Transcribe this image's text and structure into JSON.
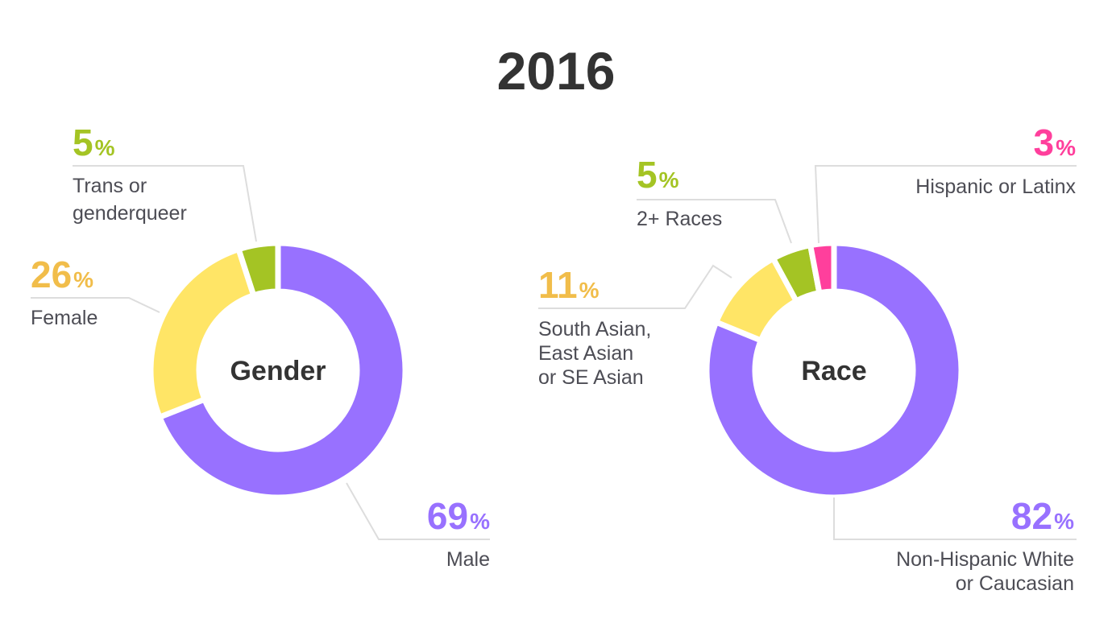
{
  "title": "2016",
  "colors": {
    "purple": "#9871ff",
    "yellow": "#ffe566",
    "green": "#a4c424",
    "pink": "#ff3f9c",
    "pct_yellow": "#f1bd4a",
    "pct_purple": "#9871ff",
    "pct_green": "#a4c424",
    "pct_pink": "#ff3f9c",
    "label": "#4d4d55",
    "leader": "#dddddd",
    "center": "#333333"
  },
  "chart_data": [
    {
      "type": "pie",
      "donut": true,
      "center_label": "Gender",
      "slices": [
        {
          "label": "Male",
          "value": 69,
          "display": "69",
          "color": "purple"
        },
        {
          "label": "Female",
          "value": 26,
          "display": "26",
          "color": "yellow"
        },
        {
          "label": "Trans or genderqueer",
          "value": 5,
          "display": "5",
          "color": "green"
        }
      ]
    },
    {
      "type": "pie",
      "donut": true,
      "center_label": "Race",
      "slices": [
        {
          "label": "Non-Hispanic White or Caucasian",
          "value": 82,
          "display": "82",
          "color": "purple"
        },
        {
          "label": "South Asian, East Asian or SE Asian",
          "value": 11,
          "display": "11",
          "color": "yellow"
        },
        {
          "label": "2+ Races",
          "value": 5,
          "display": "5",
          "color": "green"
        },
        {
          "label": "Hispanic or Latinx",
          "value": 3,
          "display": "3",
          "color": "pink"
        }
      ]
    }
  ],
  "annotations": [
    {
      "chart": 0,
      "slice": 2,
      "pct": "5",
      "pct_sign": "%",
      "lines": [
        "Trans or",
        "genderqueer"
      ],
      "color": "pct_green"
    },
    {
      "chart": 0,
      "slice": 1,
      "pct": "26",
      "pct_sign": "%",
      "lines": [
        "Female"
      ],
      "color": "pct_yellow"
    },
    {
      "chart": 0,
      "slice": 0,
      "pct": "69",
      "pct_sign": "%",
      "lines": [
        "Male"
      ],
      "color": "pct_purple"
    },
    {
      "chart": 1,
      "slice": 3,
      "pct": "3",
      "pct_sign": "%",
      "lines": [
        "Hispanic or Latinx"
      ],
      "color": "pct_pink"
    },
    {
      "chart": 1,
      "slice": 2,
      "pct": "5",
      "pct_sign": "%",
      "lines": [
        "2+ Races"
      ],
      "color": "pct_green"
    },
    {
      "chart": 1,
      "slice": 1,
      "pct": "11",
      "pct_sign": "%",
      "lines": [
        "South Asian,",
        "East Asian",
        "or SE Asian"
      ],
      "color": "pct_yellow"
    },
    {
      "chart": 1,
      "slice": 0,
      "pct": "82",
      "pct_sign": "%",
      "lines": [
        "Non-Hispanic White",
        "or Caucasian"
      ],
      "color": "pct_purple"
    }
  ]
}
